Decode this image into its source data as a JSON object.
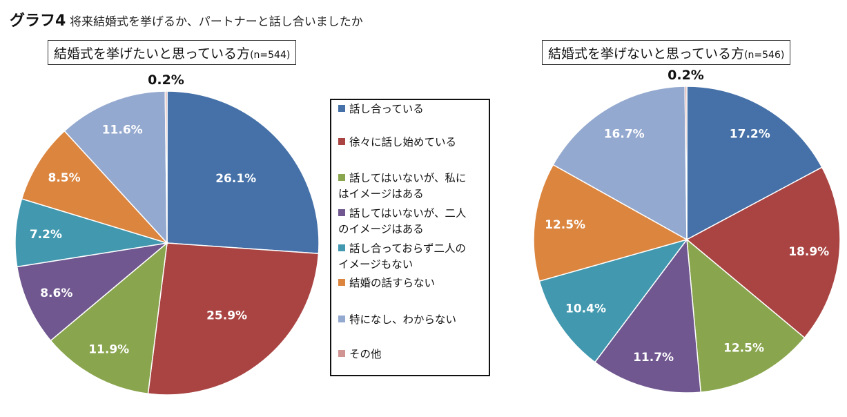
{
  "title": {
    "figure_label": "グラフ4",
    "question": "将来結婚式を挙げるか、パートナーと話し合いましたか"
  },
  "chart_data": [
    {
      "type": "pie",
      "title": "結婚式を挙げたいと思っている方",
      "n_label": "(n=544)",
      "start": "12 o'clock",
      "direction": "clockwise",
      "slices": [
        {
          "label": "話し合っている",
          "value": 26.1,
          "display": "26.1%",
          "color": "#4571A8"
        },
        {
          "label": "徐々に話し始めている",
          "value": 25.9,
          "display": "25.9%",
          "color": "#A94442"
        },
        {
          "label": "話してはいないが、私にはイメージはある",
          "value": 11.9,
          "display": "11.9%",
          "color": "#89A54D"
        },
        {
          "label": "話してはいないが、二人のイメージはある",
          "value": 8.6,
          "display": "8.6%",
          "color": "#70578F"
        },
        {
          "label": "話し合っておらず二人のイメージもない",
          "value": 7.2,
          "display": "7.2%",
          "color": "#4198AF"
        },
        {
          "label": "結婚の話すらない",
          "value": 8.5,
          "display": "8.5%",
          "color": "#DB853F"
        },
        {
          "label": "特になし、わからない",
          "value": 11.6,
          "display": "11.6%",
          "color": "#94A9CF"
        },
        {
          "label": "その他",
          "value": 0.2,
          "display": "0.2%",
          "color": "#D09592"
        }
      ]
    },
    {
      "type": "pie",
      "title": "結婚式を挙げないと思っている方",
      "n_label": "(n=546)",
      "start": "12 o'clock",
      "direction": "clockwise",
      "slices": [
        {
          "label": "話し合っている",
          "value": 17.2,
          "display": "17.2%",
          "color": "#4571A8"
        },
        {
          "label": "徐々に話し始めている",
          "value": 18.9,
          "display": "18.9%",
          "color": "#A94442"
        },
        {
          "label": "話してはいないが、私にはイメージはある",
          "value": 12.5,
          "display": "12.5%",
          "color": "#89A54D"
        },
        {
          "label": "話してはいないが、二人のイメージはある",
          "value": 11.7,
          "display": "11.7%",
          "color": "#70578F"
        },
        {
          "label": "話し合っておらず二人のイメージもない",
          "value": 10.4,
          "display": "10.4%",
          "color": "#4198AF"
        },
        {
          "label": "結婚の話すらない",
          "value": 12.5,
          "display": "12.5%",
          "color": "#DB853F"
        },
        {
          "label": "特になし、わからない",
          "value": 16.7,
          "display": "16.7%",
          "color": "#94A9CF"
        },
        {
          "label": "その他",
          "value": 0.2,
          "display": "0.2%",
          "color": "#D09592"
        }
      ]
    }
  ],
  "legend": {
    "items": [
      {
        "lines": [
          "話し合っている"
        ],
        "color": "#4571A8"
      },
      {
        "lines": [
          "徐々に話し始めている"
        ],
        "color": "#A94442"
      },
      {
        "lines": [
          "話してはいないが、私に",
          "はイメージはある"
        ],
        "color": "#89A54D"
      },
      {
        "lines": [
          "話してはいないが、二人",
          "のイメージはある"
        ],
        "color": "#70578F"
      },
      {
        "lines": [
          "話し合っておらず二人の",
          "イメージもない"
        ],
        "color": "#4198AF"
      },
      {
        "lines": [
          "結婚の話すらない"
        ],
        "color": "#DB853F"
      },
      {
        "lines": [
          "特になし、わからない"
        ],
        "color": "#94A9CF"
      },
      {
        "lines": [
          "その他"
        ],
        "color": "#D09592"
      }
    ]
  }
}
